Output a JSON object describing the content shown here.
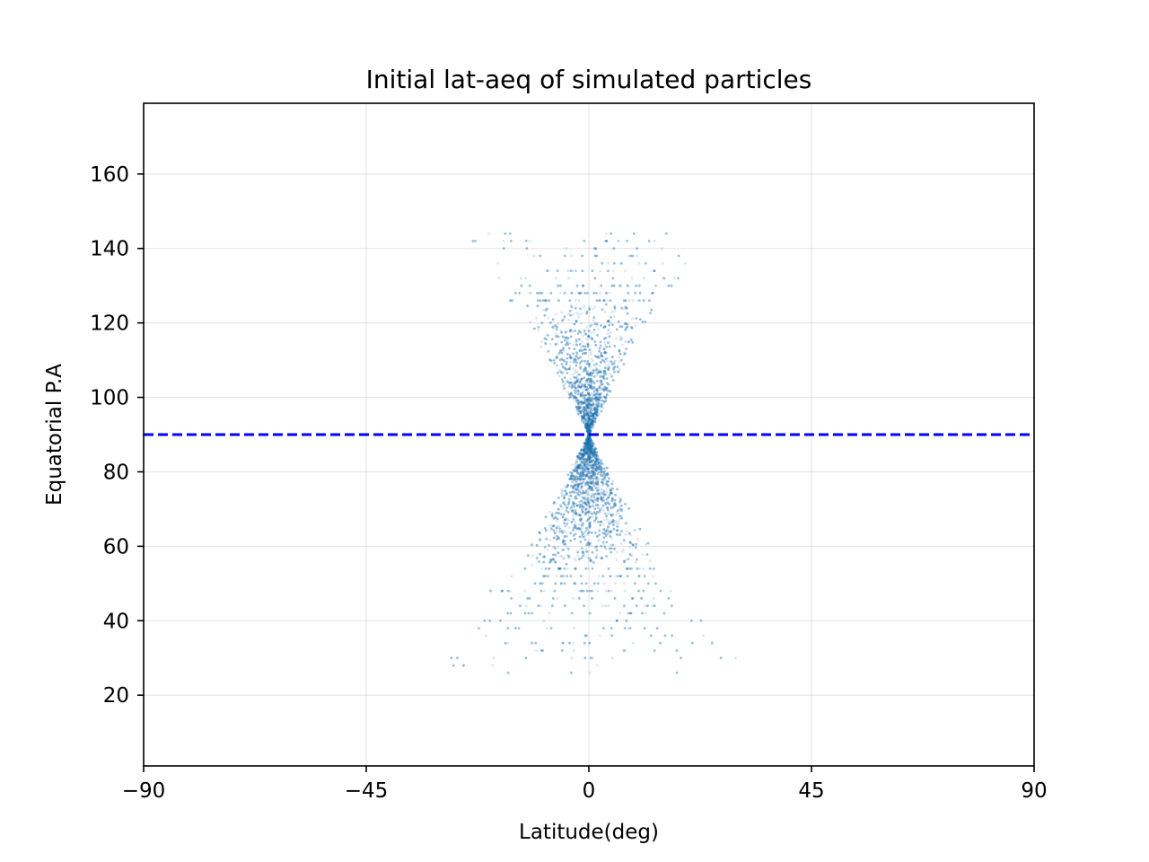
{
  "chart_data": {
    "type": "scatter",
    "title": "Initial lat-aeq of simulated particles",
    "xlabel": "Latitude(deg)",
    "ylabel": "Equatorial P.A",
    "xlim": [
      -90,
      90
    ],
    "ylim": [
      1,
      179
    ],
    "xticks": [
      -90,
      -45,
      0,
      45,
      90
    ],
    "xtick_labels": [
      "−90",
      "−45",
      "0",
      "45",
      "90"
    ],
    "yticks": [
      20,
      40,
      60,
      80,
      100,
      120,
      140,
      160
    ],
    "yticks_labels": [
      "20",
      "40",
      "60",
      "80",
      "100",
      "120",
      "140",
      "160"
    ],
    "grid": true,
    "series": [
      {
        "kind": "scatter",
        "color": "#1f77b4",
        "alpha": 0.18,
        "point_count": 6000,
        "description_of_shape": "double cone (hourglass) centered at latitude 0, equatorial P.A 90",
        "lat_spread_limits": {
          "at_pa_25": 22,
          "at_pa_30": 31,
          "at_pa_37": 28,
          "at_pa_45": 22,
          "at_pa_60": 12,
          "at_pa_90": 0,
          "at_pa_120": 12,
          "at_pa_140": 26,
          "at_pa_145": 28
        },
        "pa_range": [
          25,
          145
        ]
      },
      {
        "kind": "hline",
        "y": 90,
        "color": "#0000ff",
        "linestyle": "dashed"
      }
    ]
  }
}
